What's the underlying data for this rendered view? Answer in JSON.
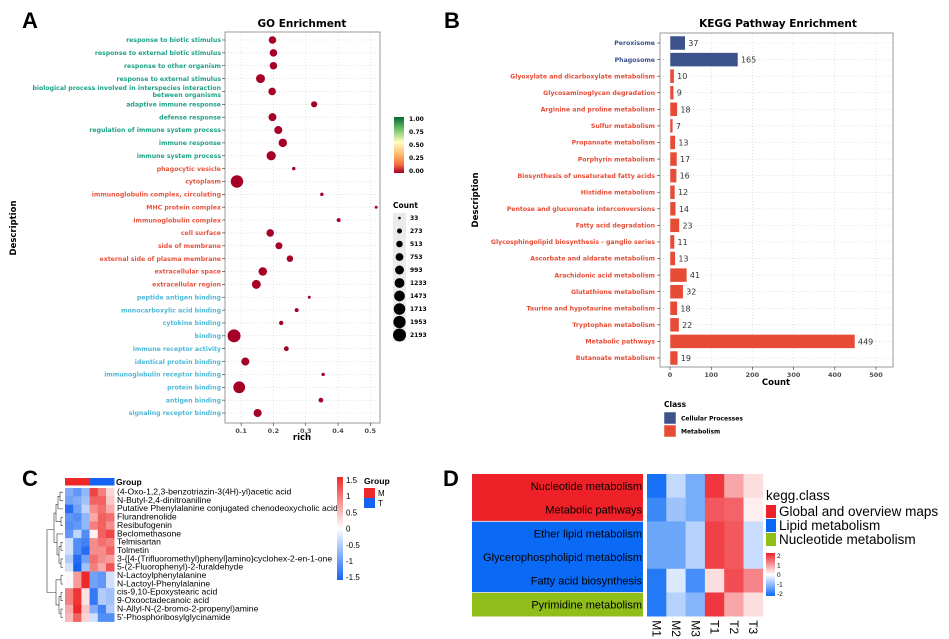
{
  "figure": {
    "panel_labels": [
      "A",
      "B",
      "C",
      "D"
    ]
  },
  "chart_data": [
    {
      "panel": "A",
      "type": "scatter",
      "title": "GO Enrichment",
      "xlabel": "rich",
      "ylabel": "Description",
      "xlim": [
        0.05,
        0.53
      ],
      "xticks": [
        0.1,
        0.2,
        0.3,
        0.4,
        0.5
      ],
      "xtick_labels": [
        "0.1",
        "0.2",
        "0.3",
        "0.4",
        "0.5"
      ],
      "grid": true,
      "point_color": "#a50026",
      "category_colors": {
        "BP": "#1fa187",
        "CC": "#e8533f",
        "MF": "#4cb8d6"
      },
      "colorbar": {
        "title": "",
        "ticks": [
          "1.00",
          "0.75",
          "0.50",
          "0.25",
          "0.00"
        ],
        "colors": [
          "#006837",
          "#66bd63",
          "#d9ef8b",
          "#fee08b",
          "#fdae61",
          "#f46d43",
          "#d73027",
          "#a50026"
        ],
        "position": "right"
      },
      "size_legend": {
        "title": "Count",
        "values": [
          33,
          273,
          513,
          753,
          993,
          1233,
          1473,
          1713,
          1953,
          2193
        ],
        "labels": [
          "33",
          "273",
          "513",
          "753",
          "993",
          "1233",
          "1473",
          "1713",
          "1953",
          "2193"
        ],
        "position": "right"
      },
      "points": [
        {
          "label": "response to biotic stimulus",
          "category": "BP",
          "rich": 0.197,
          "count": 700
        },
        {
          "label": "response to external biotic stimulus",
          "category": "BP",
          "rich": 0.2,
          "count": 700
        },
        {
          "label": "response to other organism",
          "category": "BP",
          "rich": 0.2,
          "count": 700
        },
        {
          "label": "response to external stimulus",
          "category": "BP",
          "rich": 0.16,
          "count": 1000
        },
        {
          "label": "biological process involved in interspecies interaction between organisms",
          "category": "BP",
          "rich": 0.196,
          "count": 700
        },
        {
          "label": "adaptive immune response",
          "category": "BP",
          "rich": 0.326,
          "count": 450
        },
        {
          "label": "defense response",
          "category": "BP",
          "rich": 0.197,
          "count": 800
        },
        {
          "label": "regulation of immune system process",
          "category": "BP",
          "rich": 0.215,
          "count": 800
        },
        {
          "label": "immune response",
          "category": "BP",
          "rich": 0.229,
          "count": 900
        },
        {
          "label": "immune system process",
          "category": "BP",
          "rich": 0.193,
          "count": 1100
        },
        {
          "label": "phagocytic vesicle",
          "category": "CC",
          "rich": 0.263,
          "count": 100
        },
        {
          "label": "cytoplasm",
          "category": "CC",
          "rich": 0.087,
          "count": 2000
        },
        {
          "label": "immunoglobulin complex, circulating",
          "category": "CC",
          "rich": 0.35,
          "count": 100
        },
        {
          "label": "MHC protein complex",
          "category": "CC",
          "rich": 0.518,
          "count": 60
        },
        {
          "label": "immunoglobulin complex",
          "category": "CC",
          "rich": 0.402,
          "count": 150
        },
        {
          "label": "cell surface",
          "category": "CC",
          "rich": 0.19,
          "count": 700
        },
        {
          "label": "side of membrane",
          "category": "CC",
          "rich": 0.217,
          "count": 600
        },
        {
          "label": "external side of plasma membrane",
          "category": "CC",
          "rich": 0.251,
          "count": 500
        },
        {
          "label": "extracellular space",
          "category": "CC",
          "rich": 0.167,
          "count": 900
        },
        {
          "label": "extracellular region",
          "category": "CC",
          "rich": 0.147,
          "count": 1000
        },
        {
          "label": "peptide antigen binding",
          "category": "MF",
          "rich": 0.311,
          "count": 60
        },
        {
          "label": "monocarboxylic acid binding",
          "category": "MF",
          "rich": 0.272,
          "count": 150
        },
        {
          "label": "cytokine binding",
          "category": "MF",
          "rich": 0.224,
          "count": 200
        },
        {
          "label": "binding",
          "category": "MF",
          "rich": 0.078,
          "count": 2193
        },
        {
          "label": "immune receptor activity",
          "category": "MF",
          "rich": 0.24,
          "count": 250
        },
        {
          "label": "identical protein binding",
          "category": "MF",
          "rich": 0.113,
          "count": 800
        },
        {
          "label": "immunoglobulin receptor binding",
          "category": "MF",
          "rich": 0.354,
          "count": 100
        },
        {
          "label": "protein binding",
          "category": "MF",
          "rich": 0.094,
          "count": 1800
        },
        {
          "label": "antigen binding",
          "category": "MF",
          "rich": 0.347,
          "count": 250
        },
        {
          "label": "signaling receptor binding",
          "category": "MF",
          "rich": 0.151,
          "count": 800
        }
      ]
    },
    {
      "panel": "B",
      "type": "bar",
      "orientation": "horizontal",
      "title": "KEGG Pathway Enrichment",
      "xlabel": "Count",
      "ylabel": "Description",
      "xlim": [
        0,
        520
      ],
      "xticks": [
        0,
        100,
        200,
        300,
        400,
        500
      ],
      "xtick_labels": [
        "0",
        "100",
        "200",
        "300",
        "400",
        "500"
      ],
      "grid": true,
      "legend": {
        "title": "Class",
        "position": "bottom-left",
        "entries": [
          {
            "name": "Cellular Processes",
            "color": "#3b528b"
          },
          {
            "name": "Metabolism",
            "color": "#e64b35"
          }
        ]
      },
      "categories": [
        "Peroxisome",
        "Phagosome",
        "Glyoxylate and dicarboxylate metabolism",
        "Glycosaminoglycan degradation",
        "Arginine and proline metabolism",
        "Sulfur metabolism",
        "Propanoate metabolism",
        "Porphyrin metabolism",
        "Biosynthesis of unsaturated fatty acids",
        "Histidine metabolism",
        "Pentose and glucuronate interconversions",
        "Fatty acid degradation",
        "Glycosphingolipid biosynthesis - ganglio series",
        "Ascorbate and aldarate metabolism",
        "Arachidonic acid metabolism",
        "Glutathione metabolism",
        "Taurine and hypotaurine metabolism",
        "Tryptophan metabolism",
        "Metabolic pathways",
        "Butanoate metabolism"
      ],
      "classes": [
        "Cellular Processes",
        "Cellular Processes",
        "Metabolism",
        "Metabolism",
        "Metabolism",
        "Metabolism",
        "Metabolism",
        "Metabolism",
        "Metabolism",
        "Metabolism",
        "Metabolism",
        "Metabolism",
        "Metabolism",
        "Metabolism",
        "Metabolism",
        "Metabolism",
        "Metabolism",
        "Metabolism",
        "Metabolism",
        "Metabolism"
      ],
      "values": [
        37,
        165,
        10,
        9,
        18,
        7,
        13,
        17,
        16,
        12,
        14,
        23,
        11,
        13,
        41,
        32,
        18,
        22,
        449,
        19
      ]
    },
    {
      "panel": "C",
      "type": "heatmap",
      "title": "",
      "group_annotation": {
        "title": "Group",
        "columns": [
          "M",
          "M",
          "M",
          "T",
          "T",
          "T"
        ],
        "legend": [
          {
            "name": "M",
            "color": "#ee2828"
          },
          {
            "name": "T",
            "color": "#1463f3"
          }
        ]
      },
      "colorbar": {
        "range": [
          -1.5,
          1.5
        ],
        "ticks": [
          "1.5",
          "1",
          "0.5",
          "0",
          "-0.5",
          "-1",
          "-1.5"
        ],
        "low_color": "#1463f3",
        "mid_color": "#ffffff",
        "high_color": "#ee2828"
      },
      "rows": [
        "(4-Oxo-1,2,3-benzotriazin-3(4H)-yl)acetic acid",
        "N-Butyl-2,4-dinitroaniline",
        "Putative Phenylalanine conjugated chenodeoxycholic acid",
        "Flurandrenolide",
        "Resibufogenin",
        "Beclomethasone",
        "Telmisartan",
        "Tolmetin",
        "3-{[4-(Trifluoromethyl)phenyl]amino}cyclohex-2-en-1-one",
        "5-(2-Fluorophenyl)-2-furaldehyde",
        "N-Lactoylphenylalanine",
        "N-Lactoyl-Phenylalanine",
        "cis-9,10-Epoxystearic acid",
        "9-Oxooctadecanoic acid",
        "N-Allyl-N-(2-bromo-2-propenyl)amine",
        "5'-Phosphoribosylglycinamide"
      ],
      "values": [
        [
          -0.8,
          -1.0,
          -0.7,
          1.3,
          0.9,
          0.3
        ],
        [
          -0.9,
          -0.8,
          -0.6,
          1.1,
          1.1,
          0.4
        ],
        [
          -1.4,
          -0.9,
          -0.4,
          0.8,
          1.0,
          0.6
        ],
        [
          -1.0,
          -1.1,
          -0.7,
          0.6,
          1.1,
          1.0
        ],
        [
          -1.1,
          -1.0,
          -0.7,
          0.9,
          1.1,
          0.8
        ],
        [
          -1.0,
          -0.4,
          -1.1,
          0.1,
          1.1,
          1.3
        ],
        [
          -0.3,
          -1.1,
          -1.2,
          0.8,
          1.0,
          0.9
        ],
        [
          -0.3,
          -1.1,
          -1.4,
          0.8,
          0.8,
          1.1
        ],
        [
          -0.5,
          -1.4,
          -0.9,
          1.0,
          0.8,
          0.7
        ],
        [
          -0.3,
          -1.5,
          -0.6,
          0.9,
          0.6,
          1.2
        ],
        [
          0.05,
          0.7,
          1.5,
          -0.9,
          -1.0,
          -0.3
        ],
        [
          0.05,
          0.7,
          1.5,
          -0.9,
          -1.0,
          -0.3
        ],
        [
          0.9,
          1.4,
          0.2,
          -1.3,
          -0.5,
          -0.6
        ],
        [
          0.9,
          1.4,
          0.2,
          -1.3,
          -0.5,
          -0.6
        ],
        [
          0.6,
          1.5,
          0.4,
          -0.8,
          -1.2,
          -0.5
        ],
        [
          0.5,
          1.1,
          0.3,
          -0.3,
          -1.1,
          -1.1
        ]
      ]
    },
    {
      "panel": "D",
      "type": "heatmap",
      "title": "",
      "columns": [
        "M1",
        "M2",
        "M3",
        "T1",
        "T2",
        "T3"
      ],
      "rows": [
        "Nucleotide metabolism",
        "Metabolic pathways",
        "Ether lipid metabolism",
        "Glycerophospholipid metabolism",
        "Fatty acid biosynthesis",
        "Pyrimidine metabolism"
      ],
      "row_classes": [
        "Global and overview maps",
        "Global and overview maps",
        "Lipid metabolism",
        "Lipid metabolism",
        "Lipid metabolism",
        "Nucleotide metabolism"
      ],
      "class_legend": {
        "title": "kegg.class",
        "entries": [
          {
            "name": "Global and overview maps",
            "color": "#ee2028"
          },
          {
            "name": "Lipid metabolism",
            "color": "#0a6af5"
          },
          {
            "name": "Nucleotide metabolism",
            "color": "#8fbd1a"
          }
        ]
      },
      "colorbar": {
        "range": [
          -2,
          2
        ],
        "ticks": [
          "2",
          "1",
          "0",
          "-1",
          "-2"
        ],
        "low_color": "#0a6af5",
        "mid_color": "#ffffff",
        "high_color": "#ee2028"
      },
      "values": [
        [
          -1.9,
          -0.5,
          -1.1,
          1.8,
          0.8,
          0.3
        ],
        [
          -1.6,
          -0.8,
          -1.1,
          1.5,
          1.4,
          0.15
        ],
        [
          -1.2,
          -1.2,
          -0.6,
          1.7,
          1.5,
          -0.45
        ],
        [
          -1.2,
          -1.2,
          -0.6,
          1.7,
          1.5,
          -0.45
        ],
        [
          -1.8,
          -0.3,
          -1.5,
          0.3,
          1.6,
          1.1
        ],
        [
          -1.8,
          -0.6,
          -1.0,
          1.8,
          0.8,
          0.3
        ]
      ]
    }
  ]
}
